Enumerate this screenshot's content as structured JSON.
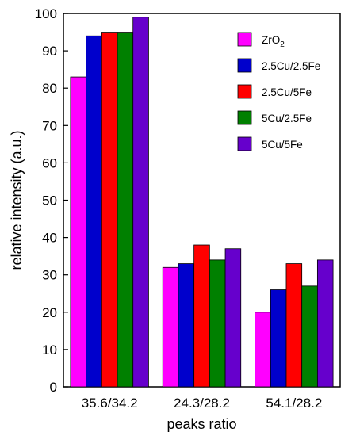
{
  "chart_data": {
    "type": "bar",
    "title": "",
    "xlabel": "peaks ratio",
    "ylabel": "relative intensity (a.u.)",
    "ylim": [
      0,
      100
    ],
    "yticks": [
      0,
      10,
      20,
      30,
      40,
      50,
      60,
      70,
      80,
      90,
      100
    ],
    "categories": [
      "35.6/34.2",
      "24.3/28.2",
      "54.1/28.2"
    ],
    "series": [
      {
        "name": "ZrO2",
        "name_base": "ZrO",
        "name_sub": "2",
        "color": "#ff00ff",
        "values": [
          83,
          32,
          20
        ]
      },
      {
        "name": "2.5Cu/2.5Fe",
        "color": "#0000cc",
        "values": [
          94,
          33,
          26
        ]
      },
      {
        "name": "2.5Cu/5Fe",
        "color": "#ff0000",
        "values": [
          95,
          38,
          33
        ]
      },
      {
        "name": "5Cu/2.5Fe",
        "color": "#008000",
        "values": [
          95,
          34,
          27
        ]
      },
      {
        "name": "5Cu/5Fe",
        "color": "#6600cc",
        "values": [
          99,
          37,
          34
        ]
      }
    ],
    "grid": false,
    "legend_position": "top-right"
  }
}
